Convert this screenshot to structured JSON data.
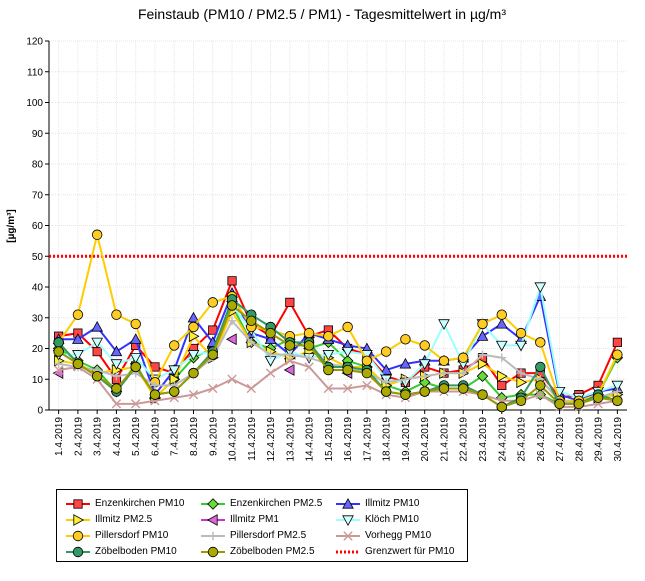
{
  "chart_data": {
    "type": "line",
    "title": "Feinstaub (PM10 / PM2.5 / PM1) -  Tagesmittelwert in µg/m³",
    "ylabel": "[µg/m³]",
    "xlabel": "",
    "ylim": [
      0,
      120
    ],
    "yticks": [
      0,
      10,
      20,
      30,
      40,
      50,
      60,
      70,
      80,
      90,
      100,
      110,
      120
    ],
    "grid": true,
    "legend_position": "bottom-left",
    "categories": [
      "1.4.2019",
      "2.4.2019",
      "3.4.2019",
      "4.4.2019",
      "5.4.2019",
      "6.4.2019",
      "7.4.2019",
      "8.4.2019",
      "9.4.2019",
      "10.4.2019",
      "11.4.2019",
      "12.4.2019",
      "13.4.2019",
      "14.4.2019",
      "15.4.2019",
      "16.4.2019",
      "17.4.2019",
      "18.4.2019",
      "19.4.2019",
      "20.4.2019",
      "21.4.2019",
      "22.4.2019",
      "23.4.2019",
      "24.4.2019",
      "25.4.2019",
      "26.4.2019",
      "27.4.2019",
      "28.4.2019",
      "29.4.2019",
      "30.4.2019"
    ],
    "threshold": {
      "name": "Grenzwert für PM10",
      "value": 50,
      "color": "#ff0000"
    },
    "series": [
      {
        "name": "Enzenkirchen PM10",
        "color": "#ff0000",
        "marker": "square",
        "fill": "#ff4444",
        "values": [
          24,
          25,
          19,
          10,
          21,
          14,
          12,
          20,
          26,
          42,
          28,
          24,
          35,
          24,
          26,
          20,
          18,
          11,
          9,
          14,
          12,
          13,
          17,
          8,
          12,
          12,
          4,
          5,
          8,
          22
        ]
      },
      {
        "name": "Enzenkirchen PM2.5",
        "color": "#33cc33",
        "marker": "diamond",
        "fill": "#66dd33",
        "values": [
          20,
          16,
          13,
          6,
          15,
          4,
          10,
          17,
          20,
          34,
          22,
          20,
          23,
          20,
          22,
          16,
          14,
          8,
          6,
          9,
          7,
          7,
          11,
          4,
          5,
          5,
          2,
          3,
          5,
          17
        ]
      },
      {
        "name": "Illmitz PM10",
        "color": "#3333ff",
        "marker": "triangle-up",
        "fill": "#6666ff",
        "values": [
          23,
          23,
          27,
          19,
          23,
          5,
          13,
          30,
          22,
          38,
          25,
          23,
          18,
          25,
          23,
          21,
          20,
          13,
          15,
          16,
          16,
          17,
          24,
          28,
          23,
          37,
          5,
          3,
          6,
          7
        ]
      },
      {
        "name": "Illmitz PM2.5",
        "color": "#ffcc00",
        "marker": "triangle-right",
        "fill": "#ffee33",
        "values": [
          16,
          15,
          12,
          13,
          14,
          4,
          10,
          24,
          17,
          32,
          22,
          19,
          17,
          19,
          17,
          14,
          14,
          8,
          10,
          11,
          12,
          12,
          15,
          11,
          9,
          10,
          3,
          2,
          4,
          5
        ]
      },
      {
        "name": "Illmitz PM1",
        "color": "#cc33cc",
        "marker": "triangle-left",
        "fill": "#dd66dd",
        "values": [
          12,
          null,
          null,
          null,
          null,
          null,
          null,
          null,
          null,
          23,
          null,
          null,
          13,
          null,
          null,
          12,
          null,
          null,
          null,
          null,
          null,
          null,
          null,
          null,
          null,
          null,
          null,
          null,
          null,
          null
        ]
      },
      {
        "name": "Klöch PM10",
        "color": "#99ffff",
        "marker": "triangle-down",
        "fill": "#ccffff",
        "values": [
          18,
          18,
          22,
          15,
          17,
          10,
          13,
          18,
          19,
          34,
          26,
          16,
          19,
          17,
          18,
          19,
          18,
          10,
          9,
          15,
          28,
          15,
          28,
          21,
          21,
          40,
          6,
          4,
          6,
          8
        ]
      },
      {
        "name": "Pillersdorf PM10",
        "color": "#ffcc00",
        "marker": "circle",
        "fill": "#ffcc22",
        "values": [
          22,
          31,
          57,
          31,
          28,
          9,
          21,
          27,
          35,
          37,
          27,
          26,
          24,
          25,
          24,
          27,
          16,
          19,
          23,
          21,
          16,
          17,
          28,
          31,
          25,
          22,
          3,
          3,
          5,
          18
        ]
      },
      {
        "name": "Pillersdorf PM2.5",
        "color": "#bbbbbb",
        "marker": "cross",
        "fill": "#bbbbbb",
        "values": [
          15,
          14,
          13,
          11,
          12,
          8,
          8,
          12,
          17,
          29,
          22,
          18,
          18,
          17,
          15,
          14,
          12,
          9,
          10,
          11,
          12,
          12,
          18,
          17,
          12,
          10,
          3,
          2,
          4,
          6
        ]
      },
      {
        "name": "Vorhegg PM10",
        "color": "#cc9999",
        "marker": "x",
        "fill": "#cc9999",
        "values": [
          13,
          14,
          10,
          2,
          2,
          3,
          4,
          5,
          7,
          10,
          7,
          12,
          16,
          14,
          7,
          7,
          8,
          5,
          4,
          6,
          6,
          6,
          5,
          3,
          3,
          5,
          1,
          1,
          2,
          3
        ]
      },
      {
        "name": "Zöbelboden PM10",
        "color": "#339966",
        "marker": "circle",
        "fill": "#339966",
        "values": [
          22,
          15,
          11,
          6,
          14,
          5,
          6,
          12,
          19,
          36,
          31,
          27,
          22,
          22,
          14,
          14,
          13,
          6,
          5,
          6,
          8,
          8,
          5,
          1,
          4,
          14,
          2,
          2,
          5,
          3
        ]
      },
      {
        "name": "Zöbelboden PM2.5",
        "color": "#999900",
        "marker": "circle",
        "fill": "#aaaa00",
        "values": [
          19,
          15,
          11,
          7,
          14,
          5,
          6,
          12,
          18,
          34,
          29,
          25,
          21,
          21,
          13,
          13,
          12,
          6,
          5,
          6,
          7,
          7,
          5,
          1,
          3,
          8,
          2,
          2,
          4,
          3
        ]
      }
    ]
  }
}
